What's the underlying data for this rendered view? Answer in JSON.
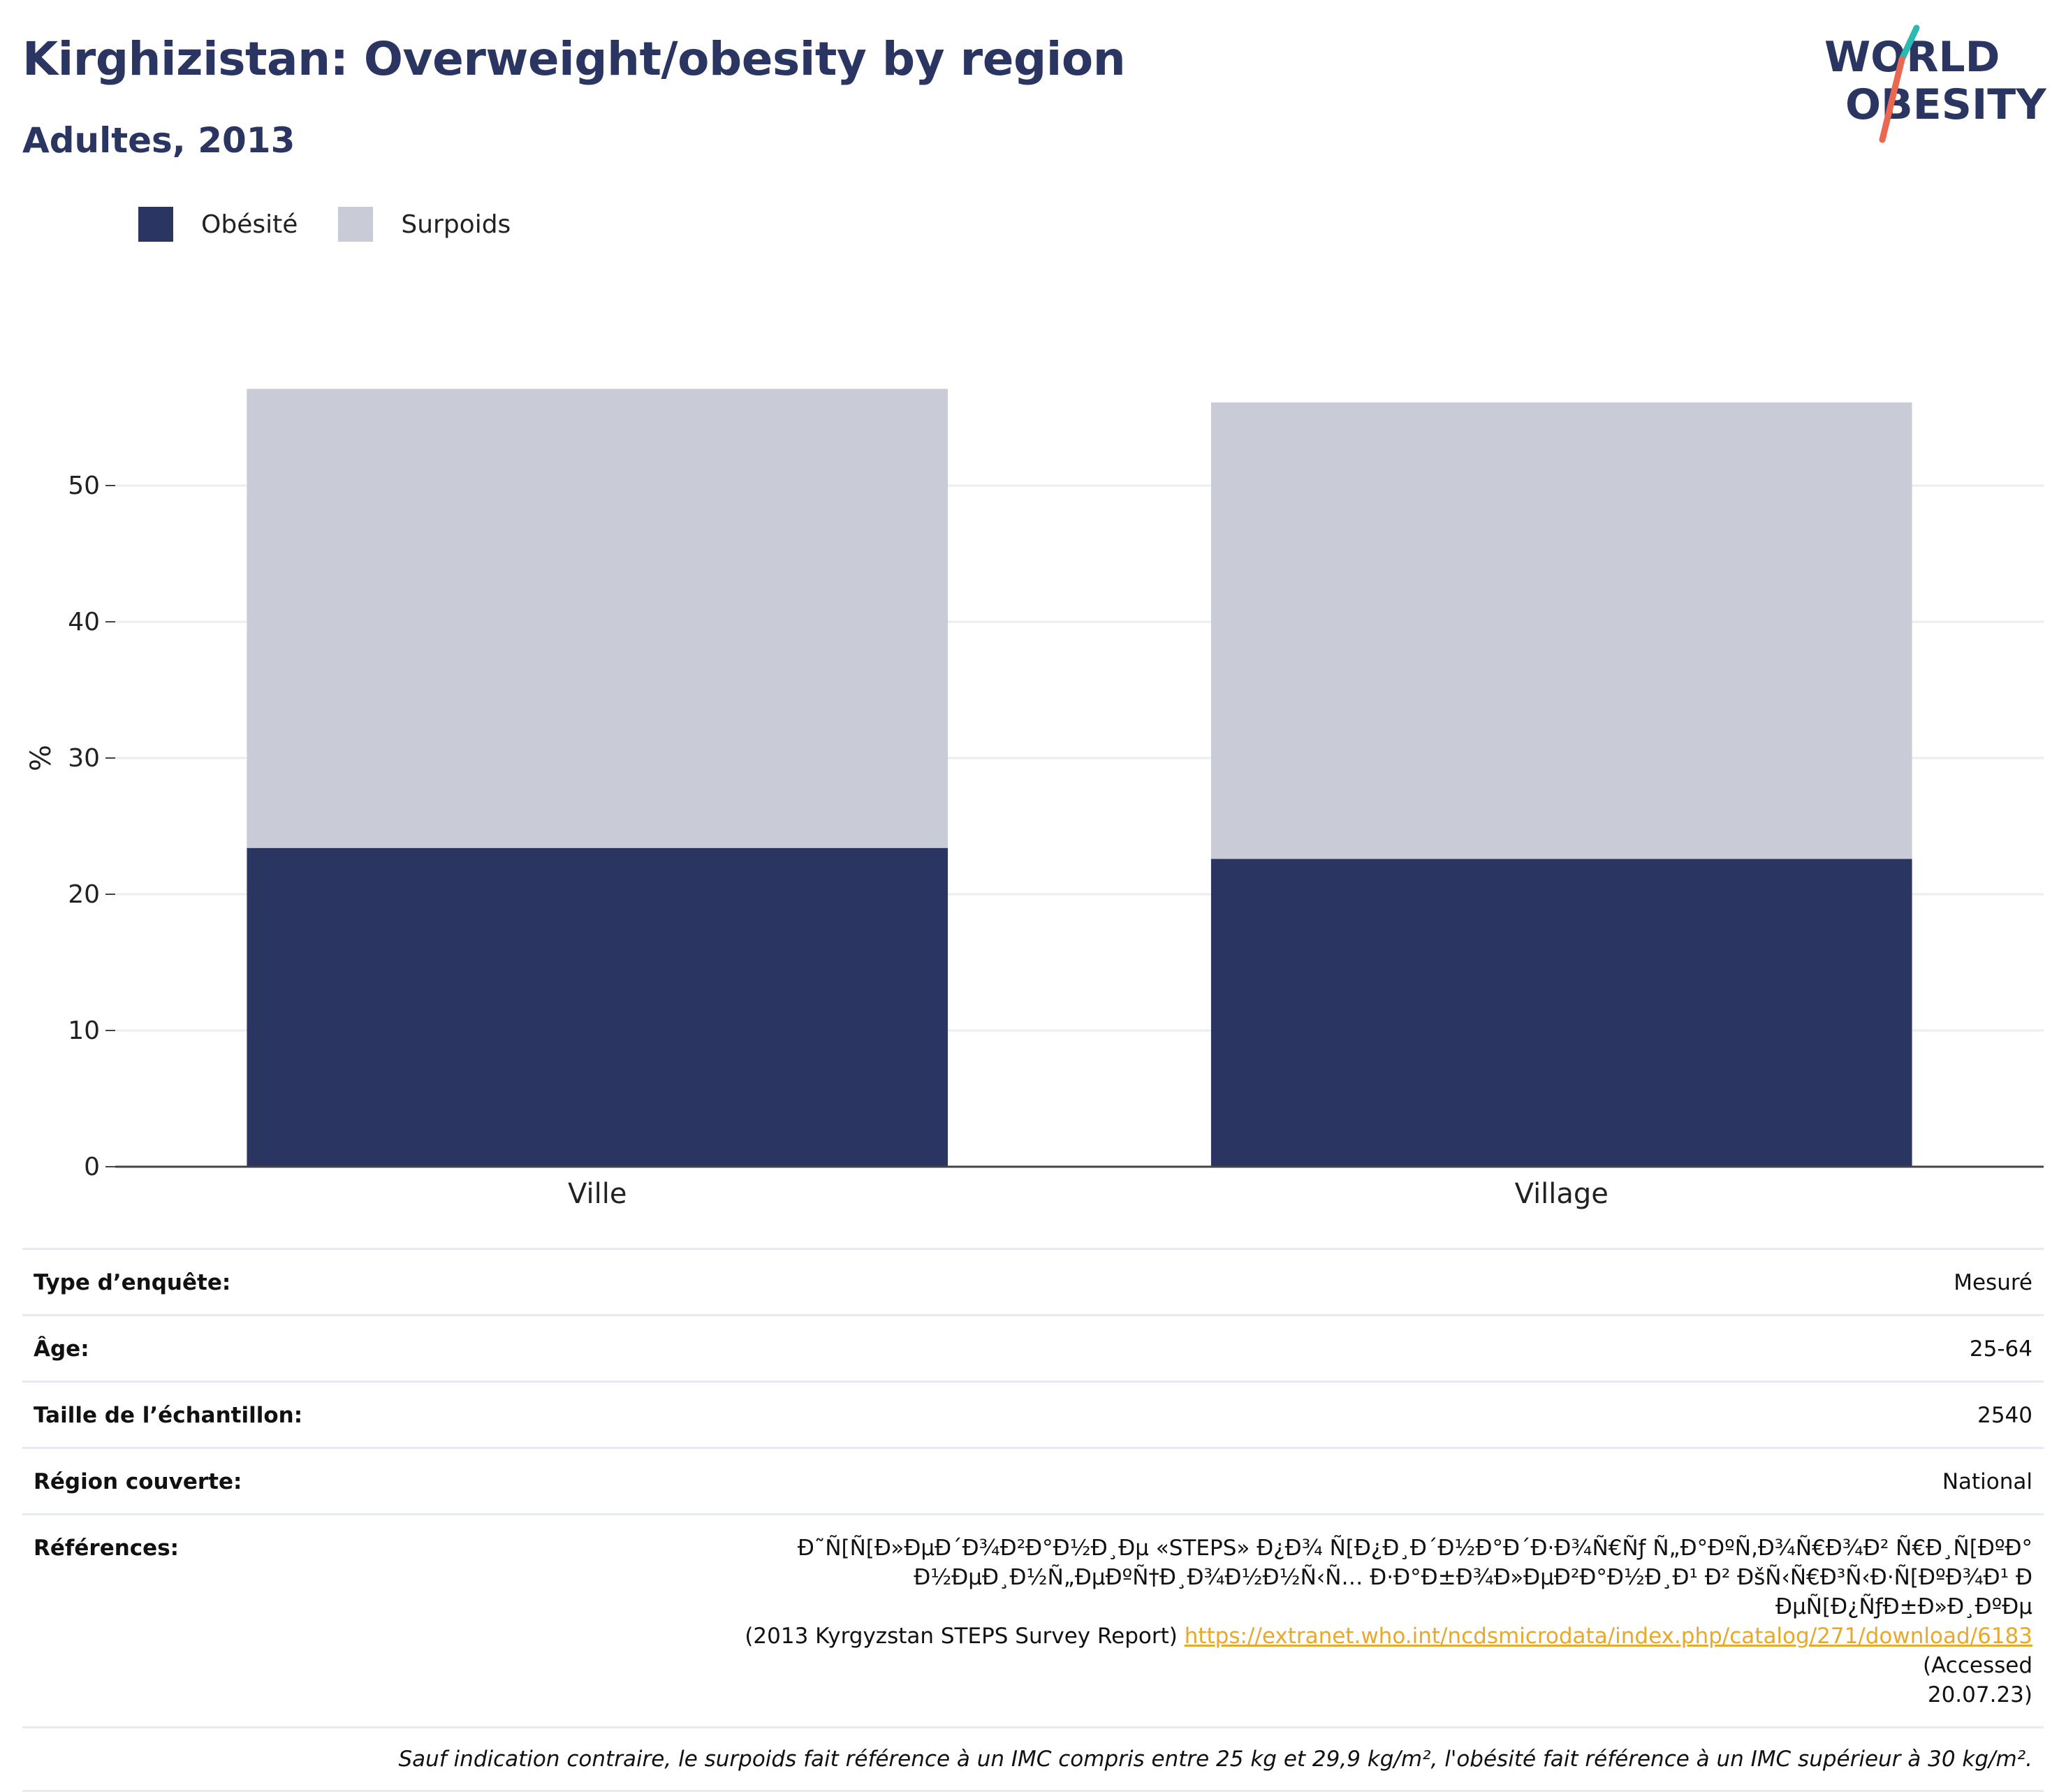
{
  "header": {
    "title": "Kirghizistan: Overweight/obesity by region",
    "subtitle": "Adultes, 2013"
  },
  "logo": {
    "line1": "WORLD",
    "line2": "OBESITY",
    "colors": {
      "text": "#2a3562",
      "slash_top": "#2bb9b2",
      "slash_bottom": "#e9684f"
    }
  },
  "legend": [
    {
      "label": "Obésité",
      "color": "#2a3562"
    },
    {
      "label": "Surpoids",
      "color": "#c9ccd7"
    }
  ],
  "chart_data": {
    "type": "bar",
    "stacked": true,
    "categories": [
      "Ville",
      "Village"
    ],
    "series": [
      {
        "name": "Obésité",
        "color": "#2a3562",
        "values": [
          23.4,
          22.6
        ]
      },
      {
        "name": "Surpoids",
        "color": "#c9ccd7",
        "values": [
          33.7,
          33.5
        ]
      }
    ],
    "ylabel": "%",
    "xlabel": "",
    "ylim": [
      0,
      60
    ],
    "yticks": [
      0,
      10,
      20,
      30,
      40,
      50
    ],
    "grid": true,
    "legend_position": "top-left"
  },
  "info": {
    "rows": [
      {
        "label": "Type d’enquête:",
        "value": "Mesuré"
      },
      {
        "label": "Âge:",
        "value": "25-64"
      },
      {
        "label": "Taille de l’échantillon:",
        "value": "2540"
      },
      {
        "label": "Région couverte:",
        "value": "National"
      }
    ],
    "references": {
      "label": "Références:",
      "line1": "Ð˜Ñ[Ñ[Ð»ÐµÐ´Ð¾Ð²Ð°Ð½Ð¸Ðµ «STEPS» Ð¿Ð¾ Ñ[Ð¿Ð¸Ð´Ð½Ð°Ð´Ð·Ð¾Ñ€Ñƒ Ñ„Ð°ÐºÑ‚Ð¾Ñ€Ð¾Ð² Ñ€Ð¸Ñ[ÐºÐ°",
      "line2": "Ð½ÐµÐ¸Ð½Ñ„ÐµÐºÑ†Ð¸Ð¾Ð½Ð½Ñ‹Ñ… Ð·Ð°Ð±Ð¾Ð»ÐµÐ²Ð°Ð½Ð¸Ð¹ Ð² ÐšÑ‹Ñ€Ð³Ñ‹Ð·Ñ[ÐºÐ¾Ð¹ Ð ÐµÑ[Ð¿ÑƒÐ±Ð»Ð¸ÐºÐµ",
      "before_link": "(2013 Kyrgyzstan STEPS Survey Report)",
      "link": "https://extranet.who.int/ncdsmicrodata/index.php/catalog/271/download/6183",
      "after_link": "(Accessed",
      "last": "20.07.23)"
    },
    "note": "Sauf indication contraire, le surpoids fait référence à un IMC compris entre 25 kg et 29,9 kg/m², l'obésité fait référence à un IMC supérieur à 30 kg/m²."
  }
}
